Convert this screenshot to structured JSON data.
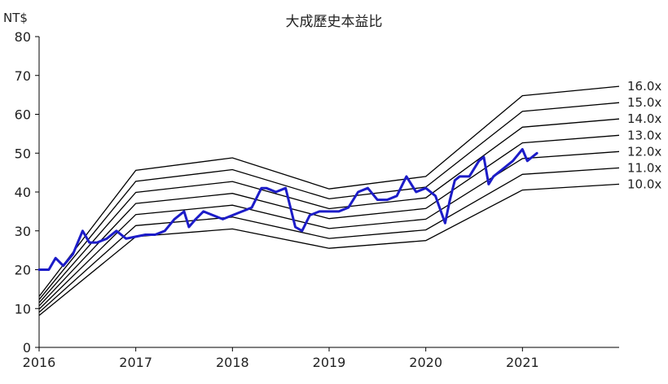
{
  "chart_data": {
    "type": "line",
    "title": "大成歷史本益比",
    "ylabel": "NT$",
    "xlabel": "",
    "xlim": [
      2016.0,
      2022.0
    ],
    "ylim": [
      0,
      80
    ],
    "y_ticks": [
      "0",
      "10",
      "20",
      "30",
      "40",
      "50",
      "60",
      "70",
      "80"
    ],
    "x_ticks": [
      "2016",
      "2017",
      "2018",
      "2019",
      "2020",
      "2021"
    ],
    "x_tick_values": [
      2016,
      2017,
      2018,
      2019,
      2020,
      2021
    ],
    "grid": false,
    "legend": "none",
    "eps_anchors": {
      "x": [
        2016.0,
        2017.0,
        2018.0,
        2019.0,
        2020.0,
        2021.0,
        2022.0
      ],
      "eps": [
        0.82,
        2.85,
        3.05,
        2.55,
        2.75,
        4.05,
        4.2
      ]
    },
    "pe_bands": [
      {
        "label": "16.0x",
        "multiple": 16
      },
      {
        "label": "15.0x",
        "multiple": 15
      },
      {
        "label": "14.0x",
        "multiple": 14
      },
      {
        "label": "13.0x",
        "multiple": 13
      },
      {
        "label": "12.0x",
        "multiple": 12
      },
      {
        "label": "11.0x",
        "multiple": 11
      },
      {
        "label": "10.0x",
        "multiple": 10
      }
    ],
    "series": [
      {
        "color": "#1c1cc8",
        "x": [
          2016.0,
          2016.1,
          2016.17,
          2016.25,
          2016.35,
          2016.45,
          2016.52,
          2016.6,
          2016.7,
          2016.8,
          2016.9,
          2017.0,
          2017.1,
          2017.2,
          2017.3,
          2017.4,
          2017.5,
          2017.55,
          2017.62,
          2017.7,
          2017.8,
          2017.9,
          2018.0,
          2018.1,
          2018.2,
          2018.3,
          2018.35,
          2018.45,
          2018.55,
          2018.65,
          2018.72,
          2018.8,
          2018.9,
          2019.0,
          2019.1,
          2019.2,
          2019.3,
          2019.4,
          2019.5,
          2019.6,
          2019.7,
          2019.8,
          2019.9,
          2020.0,
          2020.1,
          2020.2,
          2020.25,
          2020.3,
          2020.35,
          2020.45,
          2020.55,
          2020.6,
          2020.65,
          2020.7,
          2020.8,
          2020.9,
          2021.0,
          2021.05,
          2021.1,
          2021.15
        ],
        "y": [
          20,
          20,
          23,
          21,
          24,
          30,
          27,
          27,
          28,
          30,
          28,
          28.5,
          29,
          29,
          30,
          33,
          35,
          31,
          33,
          35,
          34,
          33,
          34,
          35,
          36,
          41,
          41,
          40,
          41,
          31,
          30,
          34,
          35,
          35,
          35,
          36,
          40,
          41,
          38,
          38,
          39,
          44,
          40,
          41,
          39,
          32,
          38,
          43,
          44,
          44,
          48,
          49,
          42,
          44,
          46,
          48,
          51,
          48,
          49,
          50
        ]
      }
    ]
  }
}
